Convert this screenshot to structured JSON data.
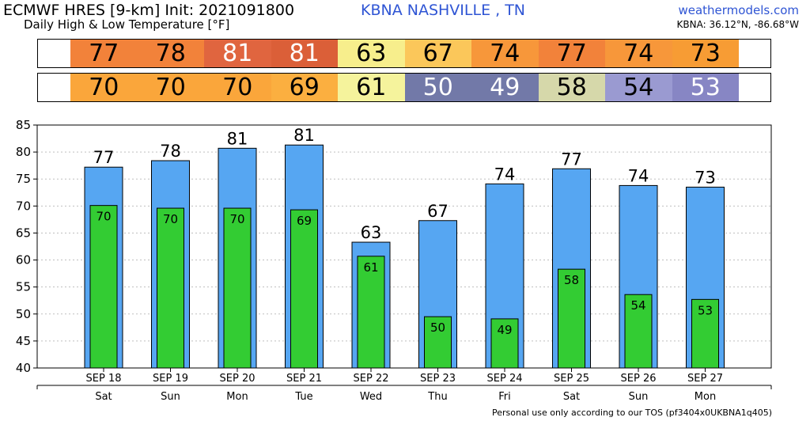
{
  "header": {
    "model": "ECMWF HRES [9-km] Init: 2021091800",
    "station": "KBNA NASHVILLE     , TN",
    "subtitle": "Daily High & Low Temperature [°F]",
    "site": "weathermodels.com",
    "coords": "KBNA: 36.12°N, -86.68°W"
  },
  "footer": "Personal use only according to our TOS (pf3404x0UKBNA1q405)",
  "colors": {
    "high_bar": "#56a6f2",
    "low_bar": "#33cc33",
    "gridline": "#bfbfbf"
  },
  "strips": {
    "high": {
      "values": [
        "77",
        "78",
        "81",
        "81",
        "63",
        "67",
        "74",
        "77",
        "74",
        "73"
      ],
      "colors": [
        "#f2823a",
        "#f2823a",
        "#e0653f",
        "#db5f38",
        "#f7ee8c",
        "#fbc75a",
        "#f7973a",
        "#f2823a",
        "#f7973a",
        "#f79c34"
      ],
      "text_colors": [
        "#000000",
        "#000000",
        "#ffffff",
        "#ffffff",
        "#000000",
        "#000000",
        "#000000",
        "#000000",
        "#000000",
        "#000000"
      ]
    },
    "low": {
      "values": [
        "70",
        "70",
        "70",
        "69",
        "61",
        "50",
        "49",
        "58",
        "54",
        "53"
      ],
      "colors": [
        "#faa63b",
        "#faa63b",
        "#faa63b",
        "#fbaf40",
        "#f5f39c",
        "#7279a8",
        "#7279a8",
        "#d6d8aa",
        "#9a9ad1",
        "#8786c4"
      ],
      "text_colors": [
        "#000000",
        "#000000",
        "#000000",
        "#000000",
        "#000000",
        "#ffffff",
        "#ffffff",
        "#000000",
        "#000000",
        "#ffffff"
      ]
    }
  },
  "chart_data": {
    "type": "bar",
    "categories": [
      "SEP 18",
      "SEP 19",
      "SEP 20",
      "SEP 21",
      "SEP 22",
      "SEP 23",
      "SEP 24",
      "SEP 25",
      "SEP 26",
      "SEP 27"
    ],
    "weekdays": [
      "Sat",
      "Sun",
      "Mon",
      "Tue",
      "Wed",
      "Thu",
      "Fri",
      "Sat",
      "Sun",
      "Mon"
    ],
    "series": [
      {
        "values": [
          77.2,
          78.4,
          80.7,
          81.3,
          63.3,
          67.3,
          74.1,
          76.9,
          73.8,
          73.5
        ],
        "labels": [
          "77",
          "78",
          "81",
          "81",
          "63",
          "67",
          "74",
          "77",
          "74",
          "73"
        ]
      },
      {
        "values": [
          70.1,
          69.6,
          69.6,
          69.3,
          60.7,
          49.5,
          49.1,
          58.3,
          53.6,
          52.7
        ],
        "labels": [
          "70",
          "70",
          "70",
          "69",
          "61",
          "50",
          "49",
          "58",
          "54",
          "53"
        ]
      }
    ],
    "ylim": [
      40,
      85
    ],
    "yticks": [
      40,
      45,
      50,
      55,
      60,
      65,
      70,
      75,
      80,
      85
    ],
    "grid": true
  }
}
